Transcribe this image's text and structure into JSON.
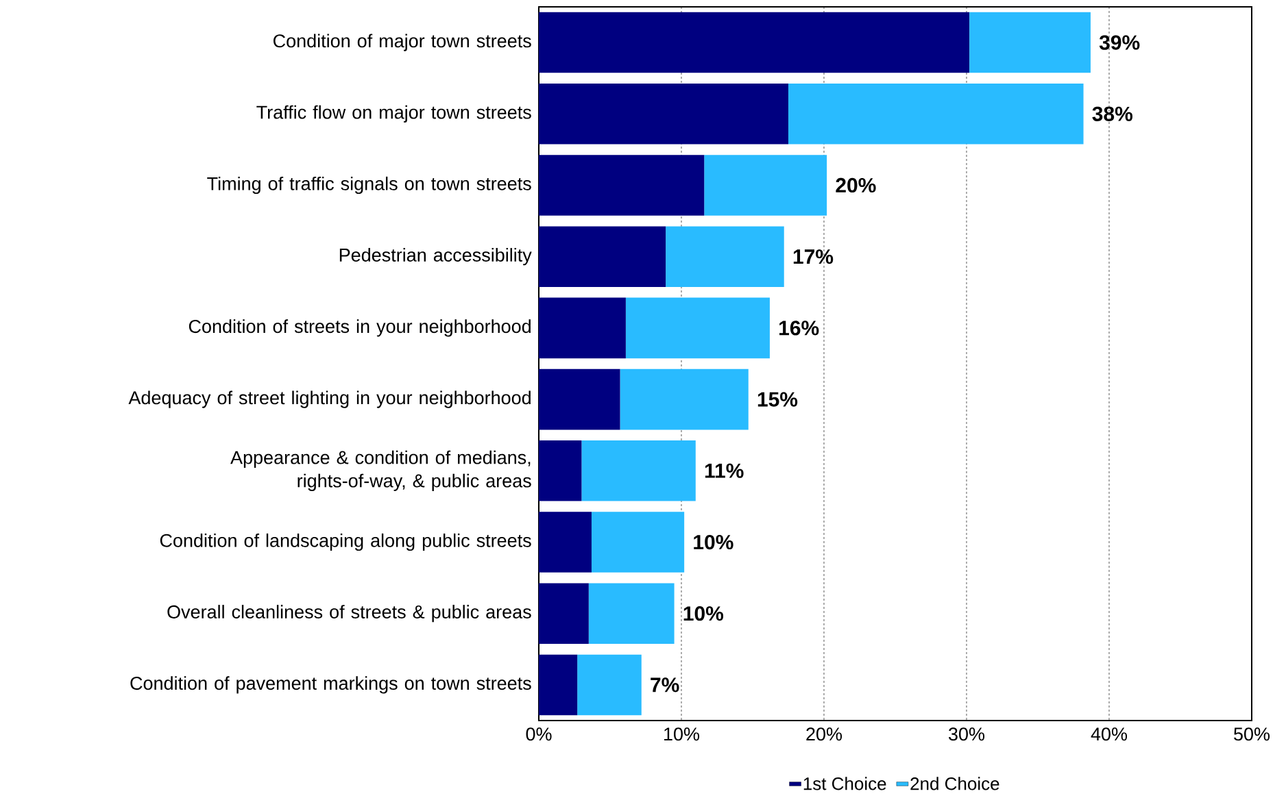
{
  "chart_data": {
    "type": "bar",
    "orientation": "horizontal",
    "stacked": true,
    "categories": [
      "Condition of major town streets",
      "Traffic flow on major town streets",
      "Timing of traffic signals on town streets",
      "Pedestrian accessibility",
      "Condition of streets in your neighborhood",
      "Adequacy of street lighting in your neighborhood",
      "Appearance & condition of medians, rights-of-way, & public areas",
      "Condition of landscaping along public streets",
      "Overall cleanliness of streets & public areas",
      "Condition of pavement markings on town streets"
    ],
    "series": [
      {
        "name": "1st Choice",
        "color": "#000080",
        "values": [
          30.2,
          17.5,
          11.6,
          8.9,
          6.1,
          5.7,
          3.0,
          3.7,
          3.5,
          2.7
        ]
      },
      {
        "name": "2nd Choice",
        "color": "#29bbff",
        "values": [
          8.5,
          20.7,
          8.6,
          8.3,
          10.1,
          9.0,
          8.0,
          6.5,
          6.0,
          4.5
        ]
      }
    ],
    "totals": [
      "39%",
      "38%",
      "20%",
      "17%",
      "16%",
      "15%",
      "11%",
      "10%",
      "10%",
      "7%"
    ],
    "xlim": [
      0,
      50
    ],
    "xticks": [
      {
        "value": 0,
        "label": "0%"
      },
      {
        "value": 10,
        "label": "10%"
      },
      {
        "value": 20,
        "label": "20%"
      },
      {
        "value": 30,
        "label": "30%"
      },
      {
        "value": 40,
        "label": "40%"
      },
      {
        "value": 50,
        "label": "50%"
      }
    ],
    "grid": "x",
    "legend": "bottom"
  }
}
